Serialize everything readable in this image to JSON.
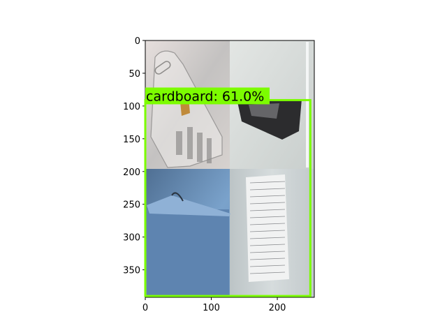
{
  "chart_data": {
    "type": "image-with-detection",
    "title": "",
    "xlabel": "",
    "ylabel": "",
    "xlim": [
      0,
      256
    ],
    "ylim": [
      392,
      0
    ],
    "xticks": [
      0,
      100,
      200
    ],
    "yticks": [
      0,
      50,
      100,
      150,
      200,
      250,
      300,
      350
    ],
    "grid": false,
    "image": {
      "layout": "2x2 grid of photos",
      "tiles": [
        {
          "name": "clear-plastic-bag",
          "x": [
            0,
            128
          ],
          "y": [
            0,
            196
          ],
          "color": "#c9c6c4"
        },
        {
          "name": "foil-wrapper",
          "x": [
            128,
            256
          ],
          "y": [
            0,
            196
          ],
          "color": "#d5d9d7"
        },
        {
          "name": "blue-cardboard",
          "x": [
            0,
            128
          ],
          "y": [
            196,
            392
          ],
          "color": "#6f98c2"
        },
        {
          "name": "handwritten-paper",
          "x": [
            128,
            256
          ],
          "y": [
            196,
            392
          ],
          "color": "#c8ced0"
        }
      ]
    },
    "detections": [
      {
        "label": "cardboard: 61.0%",
        "class": "cardboard",
        "score": 61.0,
        "box": {
          "x0": 0,
          "y0": 91,
          "x1": 250,
          "y1": 390
        },
        "color": "#7cfc00"
      }
    ]
  }
}
